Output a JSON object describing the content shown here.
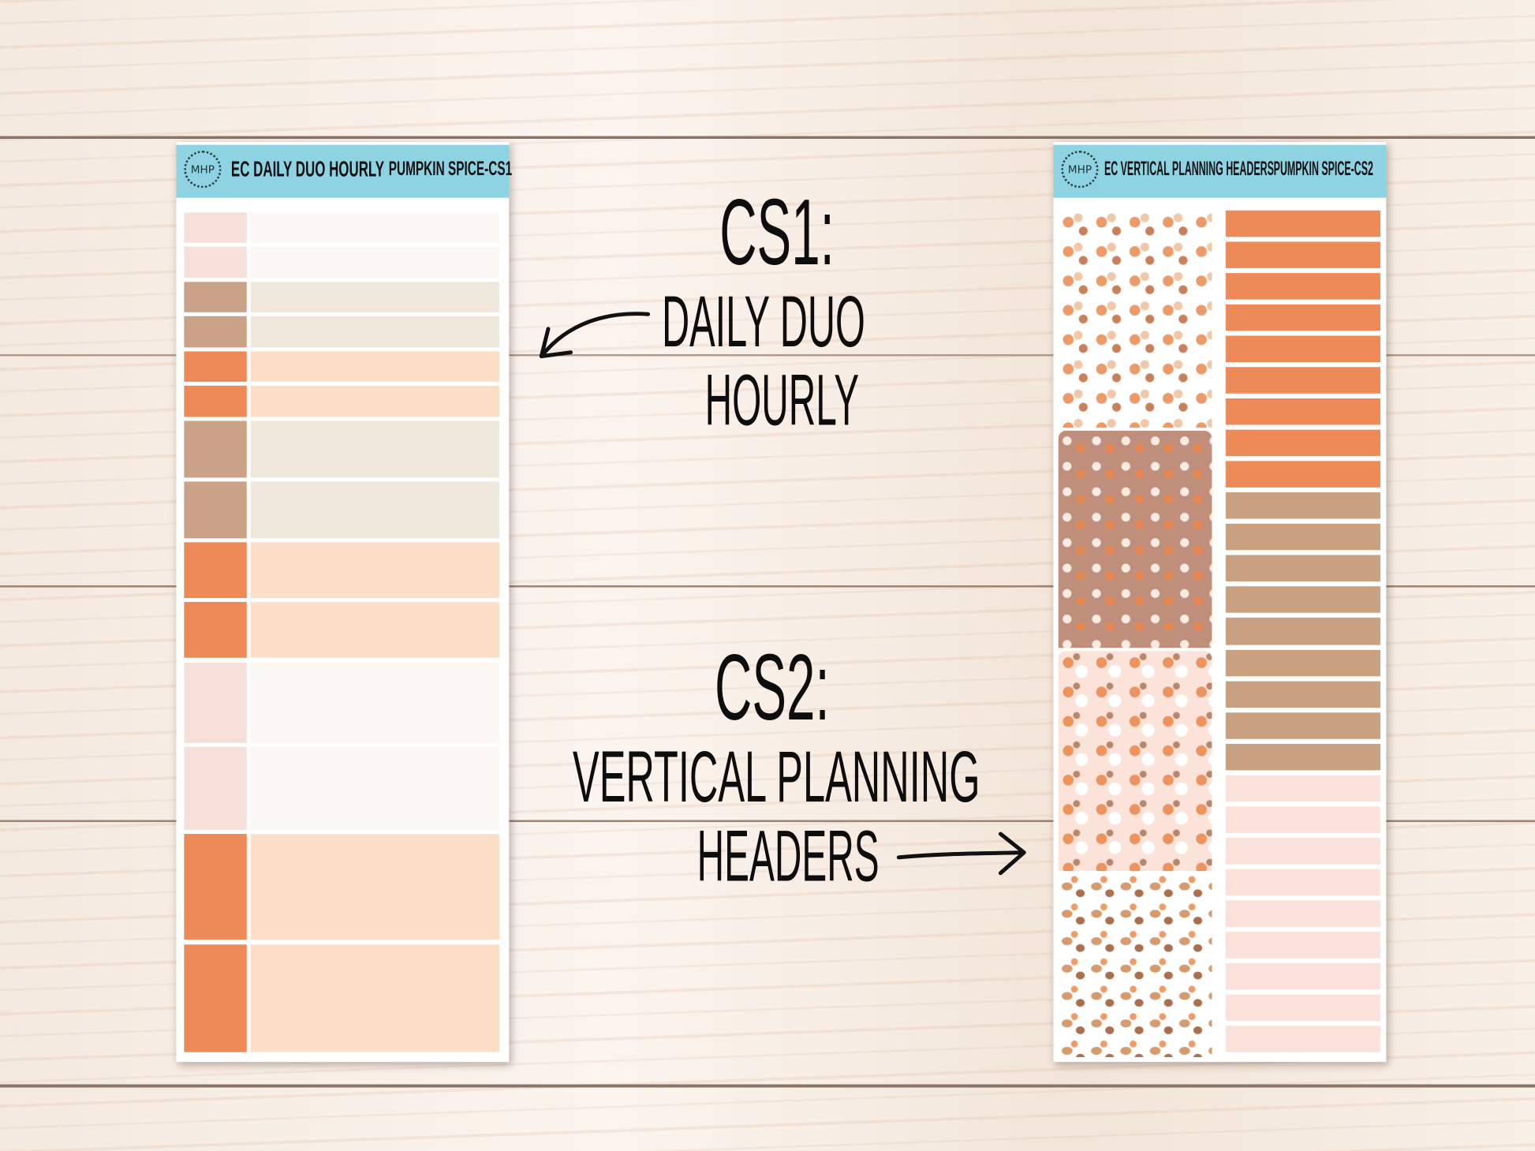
{
  "colors": {
    "header": "#8ed3e2",
    "orange_dark": "#ee8a58",
    "orange_light": "#fddfc8",
    "tan_dark": "#c9a287",
    "tan_light": "#f0e7dc",
    "pink_dark": "#f7e0da",
    "pink_light": "#fbf7f5",
    "tan_bar": "#caa180",
    "pink_bar": "#fae2da"
  },
  "sheet_cs1": {
    "logo": "MHP",
    "title": "EC DAILY DUO HOURLY",
    "subtitle": "PUMPKIN SPICE-CS1",
    "rows": [
      "pink",
      "pink",
      "tan",
      "tan",
      "orange",
      "orange",
      "tan",
      "tan",
      "orange",
      "orange",
      "pink",
      "pink",
      "orange",
      "orange"
    ]
  },
  "sheet_cs2": {
    "logo": "MHP",
    "title": "EC VERTICAL PLANNING HEADERS",
    "subtitle": "PUMPKIN SPICE-CS2",
    "patterns": [
      "white-pumpkin",
      "brown-pumpkin",
      "pink-pumpkin",
      "white-latte"
    ],
    "bars": [
      "orange",
      "orange",
      "orange",
      "orange",
      "orange",
      "orange",
      "orange",
      "orange",
      "orange",
      "tan",
      "tan",
      "tan",
      "tan",
      "tan",
      "tan",
      "tan",
      "tan",
      "tan",
      "pink",
      "pink",
      "pink",
      "pink",
      "pink",
      "pink",
      "pink",
      "pink",
      "pink"
    ]
  },
  "annotations": {
    "cs1_label": "CS1:",
    "cs1_line1": "DAILY DUO",
    "cs1_line2": "HOURLY",
    "cs2_label": "CS2:",
    "cs2_line1": "VERTICAL PLANNING",
    "cs2_line2": "HEADERS"
  }
}
